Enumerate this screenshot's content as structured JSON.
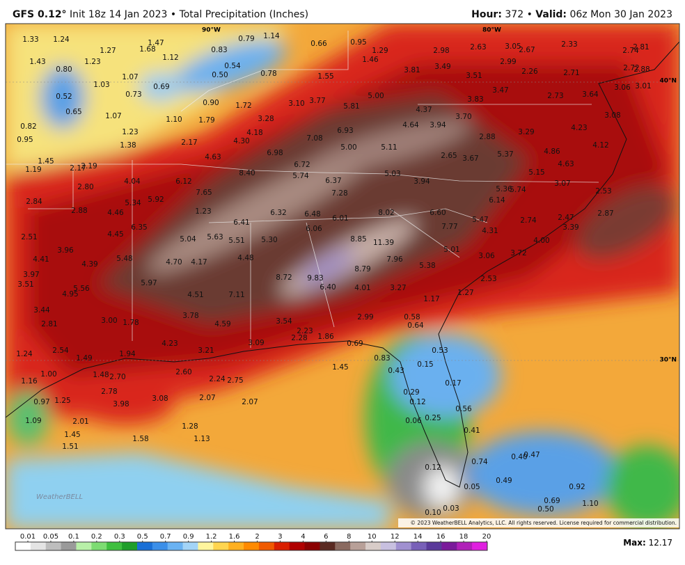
{
  "header": {
    "model": "GFS 0.12°",
    "init": "Init 18z 14 Jan 2023",
    "separator": "•",
    "product": "Total Precipitation (Inches)",
    "hour_label": "Hour:",
    "hour": "372",
    "valid_label": "Valid:",
    "valid": "06z Mon 30 Jan 2023"
  },
  "map": {
    "grid_labels": [
      "90°W",
      "80°W",
      "40°N",
      "30°N"
    ],
    "copyright": "© 2023 WeatherBELL Analytics, LLC. All rights reserved. License required for commercial distribution.",
    "logo": "WeatherBELL",
    "values": [
      "1.33",
      "1.24",
      "1.27",
      "1.68",
      "1.47",
      "1.12",
      "0.79",
      "1.14",
      "0.66",
      "0.95",
      "1.29",
      "1.46",
      "2.98",
      "2.63",
      "3.05",
      "2.67",
      "2.33",
      "2.74",
      "2.81",
      "1.43",
      "0.80",
      "1.23",
      "0.83",
      "0.54",
      "0.50",
      "0.78",
      "1.55",
      "3.81",
      "3.49",
      "2.99",
      "2.26",
      "2.71",
      "2.72",
      "2.88",
      "3.51",
      "1.03",
      "1.07",
      "0.73",
      "0.69",
      "0.52",
      "0.65",
      "3.47",
      "2.73",
      "3.64",
      "3.06",
      "3.01",
      "5.00",
      "3.10",
      "3.77",
      "0.90",
      "1.72",
      "4.37",
      "3.83",
      "5.81",
      "1.07",
      "1.10",
      "1.79",
      "3.28",
      "4.64",
      "3.94",
      "3.70",
      "3.08",
      "0.82",
      "0.95",
      "1.23",
      "4.18",
      "6.93",
      "4.30",
      "7.08",
      "2.88",
      "3.29",
      "4.23",
      "1.38",
      "2.17",
      "5.00",
      "5.11",
      "4.12",
      "4.86",
      "6.98",
      "4.63",
      "2.65",
      "3.67",
      "5.37",
      "4.63",
      "1.45",
      "1.19",
      "2.17",
      "2.19",
      "6.72",
      "8.40",
      "5.74",
      "5.03",
      "5.15",
      "4.04",
      "6.12",
      "6.37",
      "3.94",
      "3.07",
      "2.80",
      "5.36",
      "5.74",
      "2.53",
      "7.65",
      "7.28",
      "2.84",
      "5.92",
      "5.34",
      "6.14",
      "2.88",
      "4.46",
      "1.23",
      "6.32",
      "6.48",
      "8.02",
      "6.60",
      "2.87",
      "6.01",
      "5.47",
      "2.74",
      "2.47",
      "6.41",
      "6.35",
      "6.06",
      "7.77",
      "3.39",
      "4.45",
      "4.31",
      "2.51",
      "5.04",
      "5.63",
      "5.51",
      "5.30",
      "8.85",
      "11.39",
      "4.00",
      "3.96",
      "5.01",
      "3.72",
      "4.41",
      "5.48",
      "4.48",
      "7.96",
      "3.06",
      "4.39",
      "4.70",
      "4.17",
      "5.38",
      "8.79",
      "3.97",
      "8.72",
      "9.83",
      "2.53",
      "3.51",
      "5.97",
      "6.40",
      "4.01",
      "3.27",
      "5.56",
      "4.95",
      "4.51",
      "7.11",
      "1.17",
      "1.27",
      "3.44",
      "3.78",
      "0.58",
      "0.64",
      "2.99",
      "3.54",
      "3.00",
      "1.78",
      "4.59",
      "2.81",
      "2.23",
      "2.28",
      "1.86",
      "4.23",
      "3.09",
      "0.69",
      "2.54",
      "3.21",
      "0.53",
      "1.24",
      "1.49",
      "1.94",
      "0.83",
      "0.15",
      "1.45",
      "1.00",
      "1.48",
      "2.70",
      "2.60",
      "2.24",
      "2.75",
      "0.43",
      "0.17",
      "1.16",
      "2.78",
      "3.98",
      "3.08",
      "2.07",
      "2.07",
      "0.29",
      "0.97",
      "1.25",
      "0.12",
      "0.56",
      "1.09",
      "2.01",
      "0.25",
      "0.06",
      "1.28",
      "0.41",
      "1.45",
      "1.58",
      "1.13",
      "1.51",
      "0.40",
      "0.47",
      "0.74",
      "0.12",
      "0.49",
      "0.05",
      "0.92",
      "1.10",
      "0.69",
      "0.50",
      "0.03",
      "0.10"
    ]
  },
  "colorbar": {
    "ticks": [
      0.01,
      0.05,
      0.1,
      0.2,
      0.3,
      0.5,
      0.7,
      0.9,
      1.2,
      1.6,
      2,
      3,
      4,
      6,
      8,
      10,
      12,
      14,
      16,
      18,
      20
    ]
  },
  "footer": {
    "max_label": "Max:",
    "max": "12.17"
  }
}
